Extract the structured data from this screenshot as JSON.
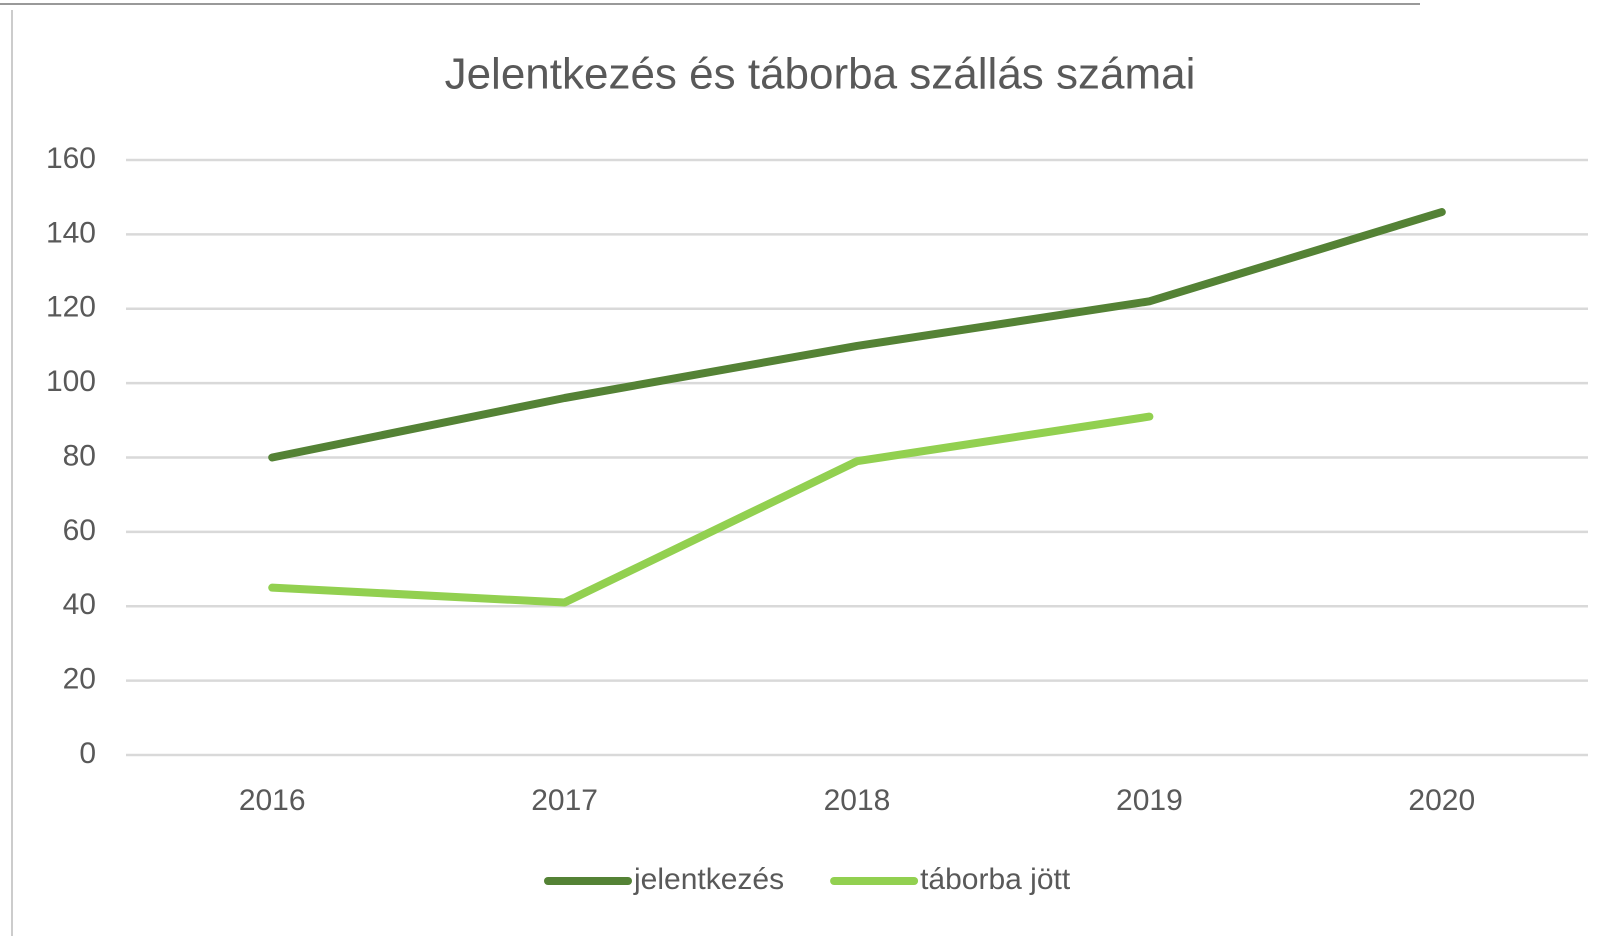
{
  "chart_data": {
    "type": "line",
    "title": "Jelentkezés és táborba szállás számai",
    "categories": [
      "2016",
      "2017",
      "2018",
      "2019",
      "2020"
    ],
    "series": [
      {
        "name": "jelentkezés",
        "color": "#548235",
        "values": [
          80,
          96,
          110,
          122,
          146
        ]
      },
      {
        "name": "táborba jött",
        "color": "#92d050",
        "values": [
          45,
          41,
          79,
          91,
          null
        ]
      }
    ],
    "ylim": [
      0,
      160
    ],
    "yticks": [
      0,
      20,
      40,
      60,
      80,
      100,
      120,
      140,
      160
    ],
    "grid": true,
    "legend": "bottom"
  }
}
